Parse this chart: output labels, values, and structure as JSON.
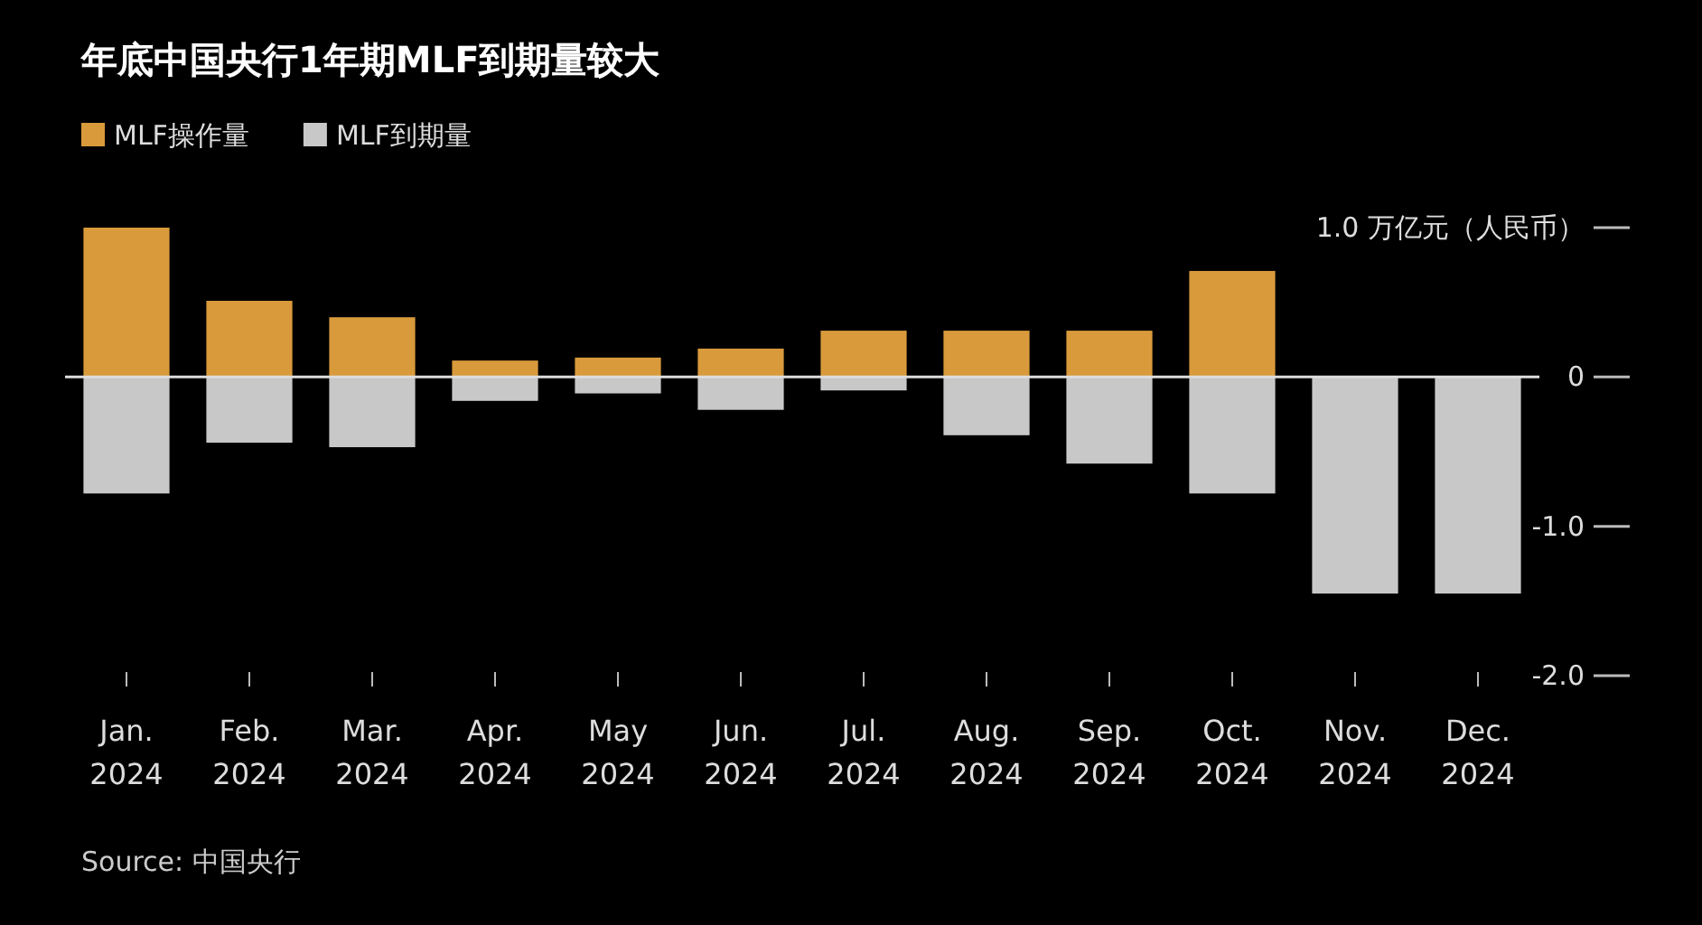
{
  "chart_data": {
    "type": "bar",
    "title": "年底中国央行1年期MLF到期量较大",
    "categories": [
      "Jan.\n2024",
      "Feb.\n2024",
      "Mar.\n2024",
      "Apr.\n2024",
      "May\n2024",
      "Jun.\n2024",
      "Jul.\n2024",
      "Aug.\n2024",
      "Sep.\n2024",
      "Oct.\n2024",
      "Nov.\n2024",
      "Dec.\n2024"
    ],
    "series": [
      {
        "name": "MLF操作量",
        "color": "#d99a3c",
        "values": [
          1.0,
          0.51,
          0.4,
          0.11,
          0.13,
          0.19,
          0.31,
          0.31,
          0.31,
          0.71,
          null,
          null
        ]
      },
      {
        "name": "MLF到期量",
        "color": "#c8c8c8",
        "values": [
          -0.78,
          -0.44,
          -0.47,
          -0.16,
          -0.11,
          -0.22,
          -0.09,
          -0.39,
          -0.58,
          -0.78,
          -1.45,
          -1.45
        ]
      }
    ],
    "stacked": true,
    "ylim": [
      -2.0,
      1.0
    ],
    "yticks": [
      {
        "value": 1.0,
        "label": "1.0 万亿元（人民币）"
      },
      0,
      {
        "value": -1.0,
        "label": "-1.0"
      },
      {
        "value": -2.0,
        "label": "-2.0"
      }
    ],
    "legend": "top left",
    "annotations": [
      "Source: 中国央行"
    ]
  }
}
